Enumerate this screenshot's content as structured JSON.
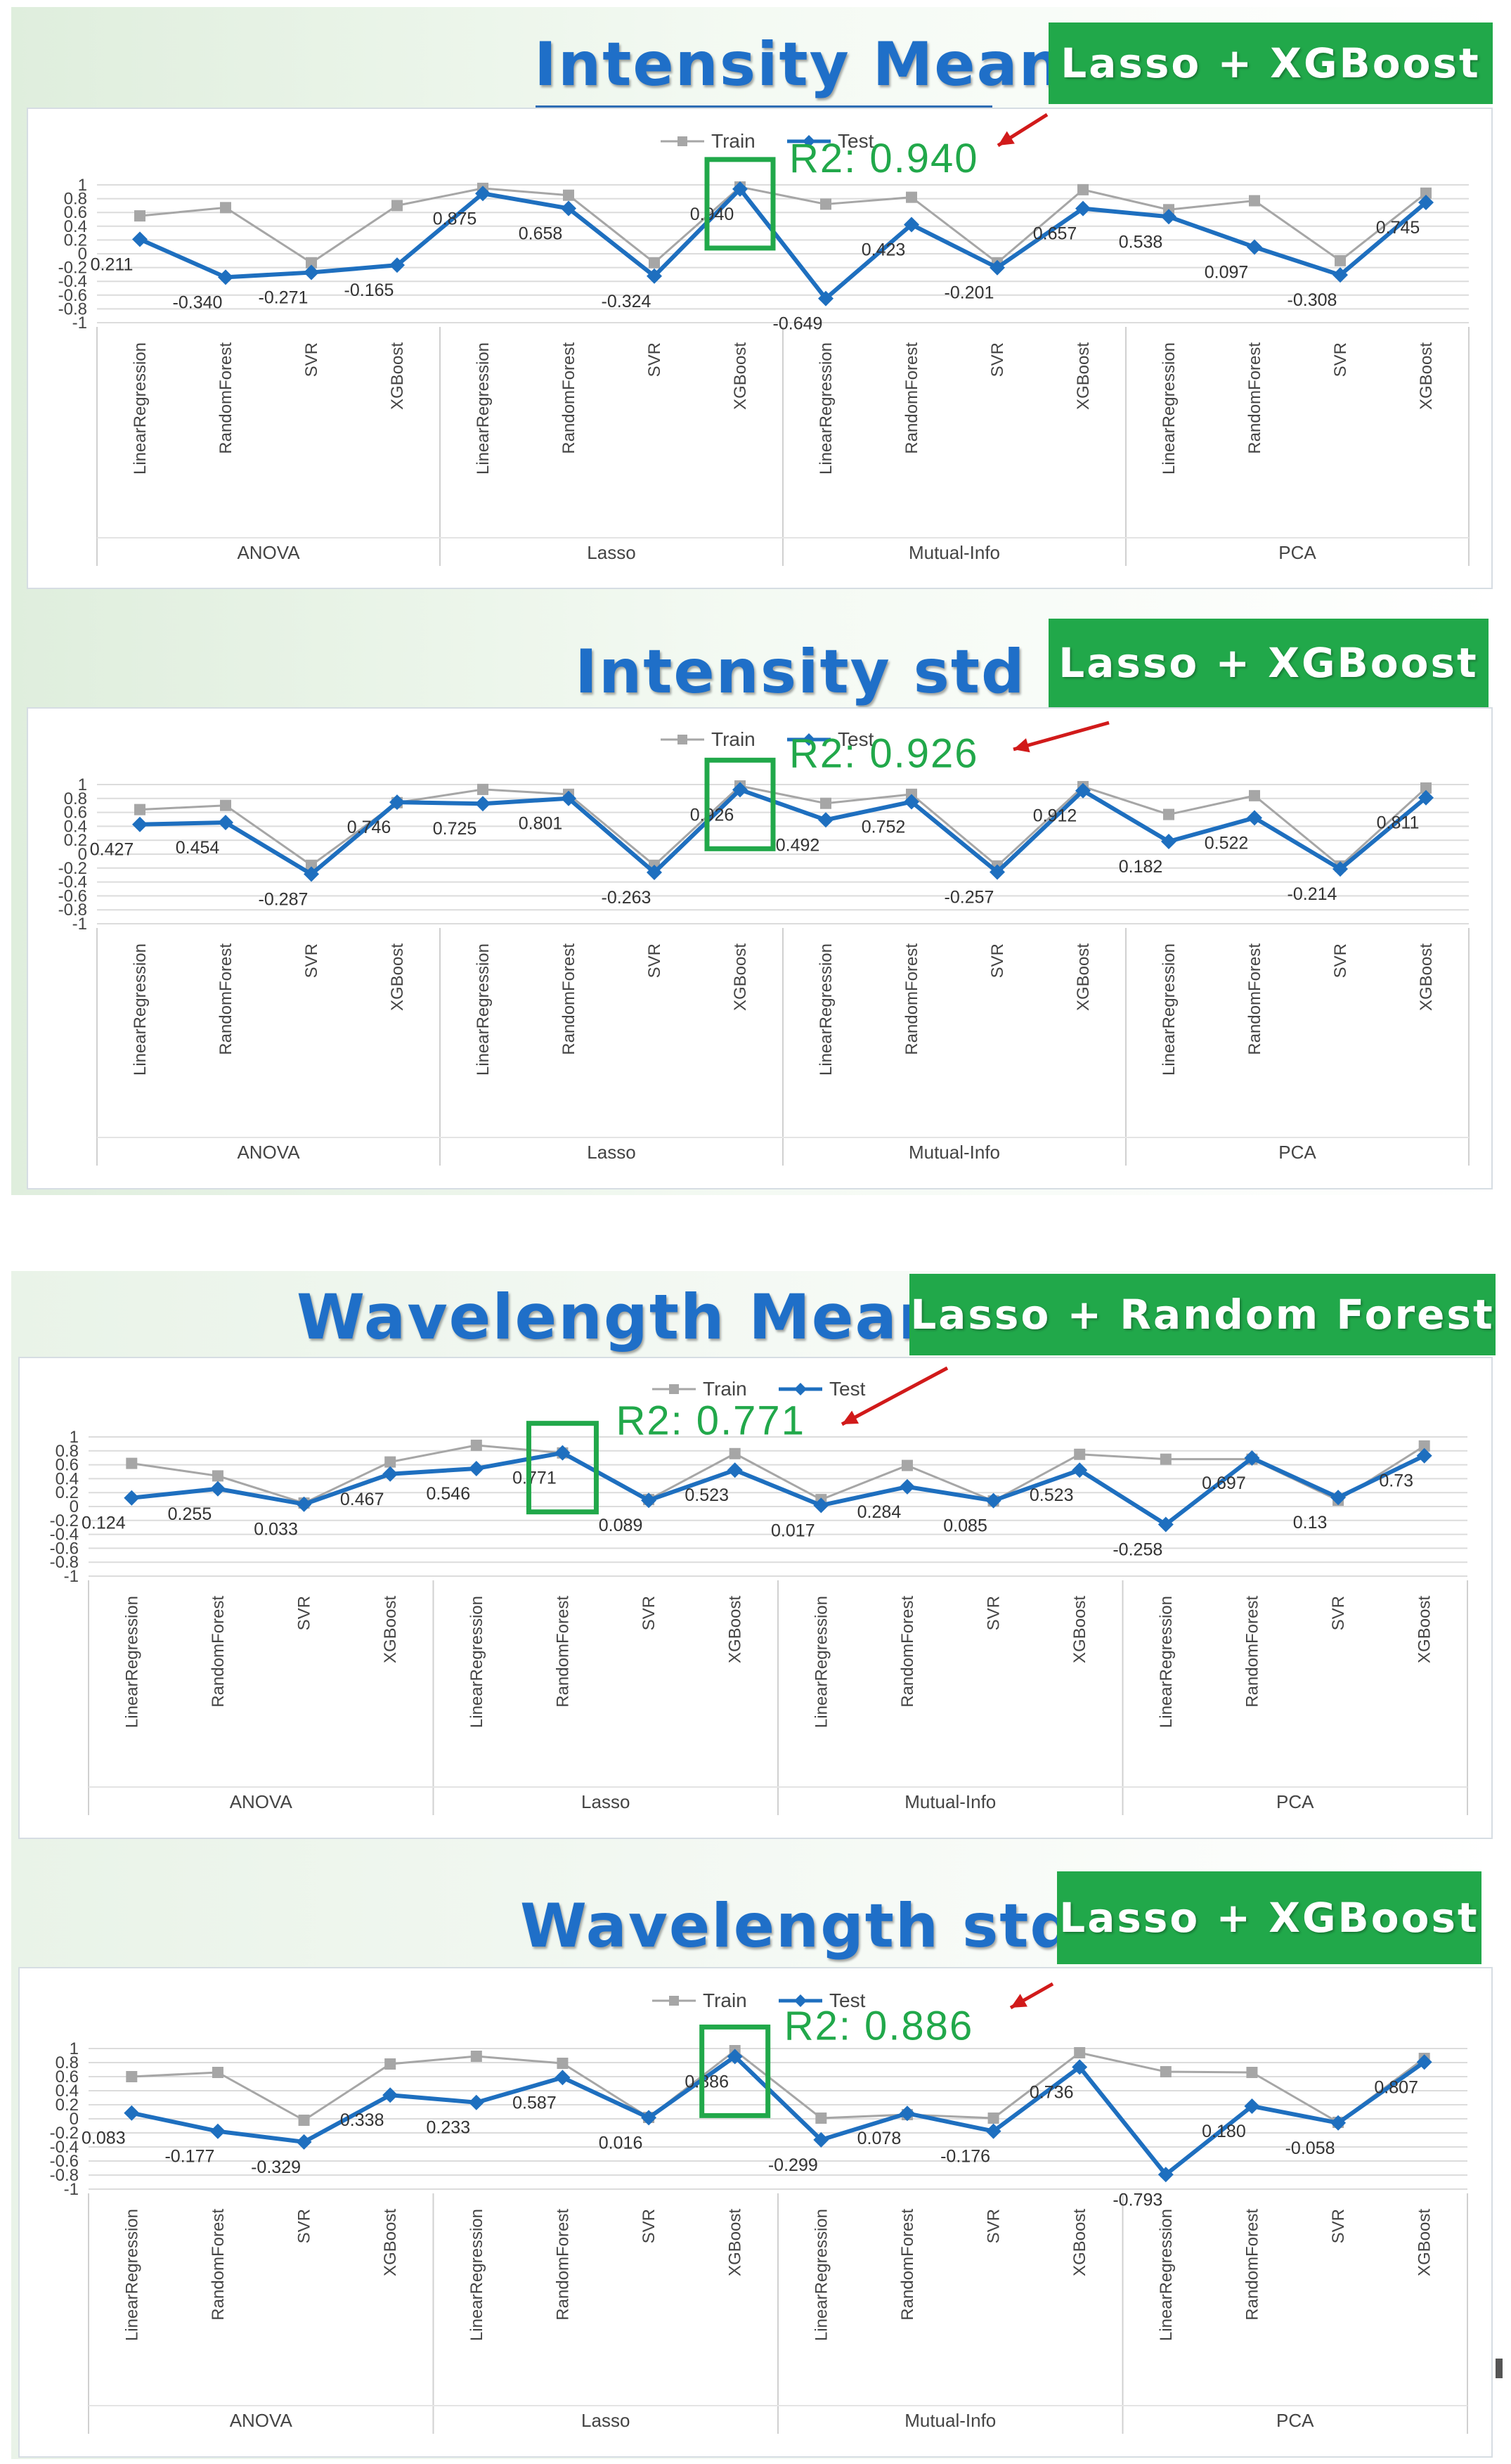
{
  "panels": [
    {
      "title": "Intensity Mean",
      "badge": "Lasso + XGBoost",
      "highlight": {
        "label": "R2: 0.940",
        "color": "#21a84a",
        "group": 1,
        "method": 3
      }
    },
    {
      "title": "Intensity std",
      "badge": "Lasso + XGBoost",
      "highlight": {
        "label": "R2: 0.926",
        "color": "#21a84a",
        "group": 1,
        "method": 3
      }
    },
    {
      "title": "Wavelength Mean",
      "badge": "Lasso + Random Forest",
      "highlight": {
        "label": "R2: 0.771",
        "color": "#21a84a",
        "group": 1,
        "method": 1
      }
    },
    {
      "title": "Wavelength std",
      "badge": "Lasso + XGBoost",
      "highlight": {
        "label": "R2: 0.886",
        "color": "#21a84a",
        "group": 1,
        "method": 3
      }
    }
  ],
  "chart_data": [
    {
      "type": "line",
      "title": "Intensity Mean",
      "groups": [
        "ANOVA",
        "Lasso",
        "Mutual-Info",
        "PCA"
      ],
      "methods": [
        "LinearRegression",
        "RandomForest",
        "SVR",
        "XGBoost"
      ],
      "ylim": [
        -1,
        1
      ],
      "yticks": [
        "1",
        "0.8",
        "0.6",
        "0.4",
        "0.2",
        "0",
        "-0.2",
        "-0.4",
        "-0.6",
        "-0.8",
        "-1"
      ],
      "grid": true,
      "legend_position": "top-center",
      "series": [
        {
          "name": "Train",
          "color": "#a6a6a6",
          "values": [
            0.55,
            0.67,
            -0.13,
            0.7,
            0.95,
            0.85,
            -0.13,
            0.97,
            0.72,
            0.82,
            -0.13,
            0.93,
            0.64,
            0.77,
            -0.1,
            0.88
          ]
        },
        {
          "name": "Test",
          "color": "#1e6fbf",
          "values": [
            0.211,
            -0.34,
            -0.271,
            -0.165,
            0.875,
            0.658,
            -0.324,
            0.94,
            -0.649,
            0.423,
            -0.201,
            0.657,
            0.538,
            0.097,
            -0.308,
            0.745
          ],
          "labels": [
            "0.211",
            "-0.340",
            "-0.271",
            "-0.165",
            "0.875",
            "0.658",
            "-0.324",
            "0.940",
            "-0.649",
            "0.423",
            "-0.201",
            "0.657",
            "0.538",
            "0.097",
            "-0.308",
            "0.745"
          ]
        }
      ]
    },
    {
      "type": "line",
      "title": "Intensity std",
      "groups": [
        "ANOVA",
        "Lasso",
        "Mutual-Info",
        "PCA"
      ],
      "methods": [
        "LinearRegression",
        "RandomForest",
        "SVR",
        "XGBoost"
      ],
      "ylim": [
        -1,
        1
      ],
      "yticks": [
        "1",
        "0.8",
        "0.6",
        "0.4",
        "0.2",
        "0",
        "-0.2",
        "-0.4",
        "-0.6",
        "-0.8",
        "-1"
      ],
      "grid": true,
      "legend_position": "top-center",
      "series": [
        {
          "name": "Train",
          "color": "#a6a6a6",
          "values": [
            0.64,
            0.7,
            -0.16,
            0.74,
            0.93,
            0.86,
            -0.16,
            0.98,
            0.73,
            0.86,
            -0.17,
            0.97,
            0.57,
            0.84,
            -0.17,
            0.95
          ]
        },
        {
          "name": "Test",
          "color": "#1e6fbf",
          "values": [
            0.427,
            0.454,
            -0.287,
            0.746,
            0.725,
            0.801,
            -0.263,
            0.926,
            0.492,
            0.752,
            -0.257,
            0.912,
            0.182,
            0.522,
            -0.214,
            0.811
          ],
          "labels": [
            "0.427",
            "0.454",
            "-0.287",
            "0.746",
            "0.725",
            "0.801",
            "-0.263",
            "0.926",
            "0.492",
            "0.752",
            "-0.257",
            "0.912",
            "0.182",
            "0.522",
            "-0.214",
            "0.811"
          ]
        }
      ]
    },
    {
      "type": "line",
      "title": "Wavelength Mean",
      "groups": [
        "ANOVA",
        "Lasso",
        "Mutual-Info",
        "PCA"
      ],
      "methods": [
        "LinearRegression",
        "RandomForest",
        "SVR",
        "XGBoost"
      ],
      "ylim": [
        -1,
        1
      ],
      "yticks": [
        "1",
        "0.8",
        "0.6",
        "0.4",
        "0.2",
        "0",
        "-0.2",
        "-0.4",
        "-0.6",
        "-0.8",
        "-1"
      ],
      "grid": true,
      "legend_position": "top-center",
      "series": [
        {
          "name": "Train",
          "color": "#a6a6a6",
          "values": [
            0.62,
            0.44,
            0.05,
            0.64,
            0.88,
            0.77,
            0.1,
            0.76,
            0.1,
            0.59,
            0.08,
            0.75,
            0.68,
            0.68,
            0.09,
            0.87
          ]
        },
        {
          "name": "Test",
          "color": "#1e6fbf",
          "values": [
            0.124,
            0.255,
            0.033,
            0.467,
            0.546,
            0.771,
            0.089,
            0.523,
            0.017,
            0.284,
            0.085,
            0.523,
            -0.258,
            0.697,
            0.13,
            0.73
          ],
          "labels": [
            "0.124",
            "0.255",
            "0.033",
            "0.467",
            "0.546",
            "0.771",
            "0.089",
            "0.523",
            "0.017",
            "0.284",
            "0.085",
            "0.523",
            "-0.258",
            "0.697",
            "0.13",
            "0.73"
          ]
        }
      ]
    },
    {
      "type": "line",
      "title": "Wavelength std",
      "groups": [
        "ANOVA",
        "Lasso",
        "Mutual-Info",
        "PCA"
      ],
      "methods": [
        "LinearRegression",
        "RandomForest",
        "SVR",
        "XGBoost"
      ],
      "ylim": [
        -1,
        1
      ],
      "yticks": [
        "1",
        "0.8",
        "0.6",
        "0.4",
        "0.2",
        "0",
        "-0.2",
        "-0.4",
        "-0.6",
        "-0.8",
        "-1"
      ],
      "grid": true,
      "legend_position": "top-center",
      "series": [
        {
          "name": "Train",
          "color": "#a6a6a6",
          "values": [
            0.6,
            0.66,
            -0.02,
            0.78,
            0.89,
            0.79,
            0.02,
            0.97,
            0.01,
            0.06,
            0.01,
            0.94,
            0.67,
            0.66,
            -0.05,
            0.86
          ]
        },
        {
          "name": "Test",
          "color": "#1e6fbf",
          "values": [
            0.083,
            -0.177,
            -0.329,
            0.338,
            0.233,
            0.587,
            0.016,
            0.886,
            -0.299,
            0.078,
            -0.176,
            0.736,
            -0.793,
            0.18,
            -0.058,
            0.807
          ],
          "labels": [
            "0.083",
            "-0.177",
            "-0.329",
            "0.338",
            "0.233",
            "0.587",
            "0.016",
            "0.886",
            "-0.299",
            "0.078",
            "-0.176",
            "0.736",
            "-0.793",
            "0.180",
            "-0.058",
            "0.807"
          ]
        }
      ]
    }
  ]
}
